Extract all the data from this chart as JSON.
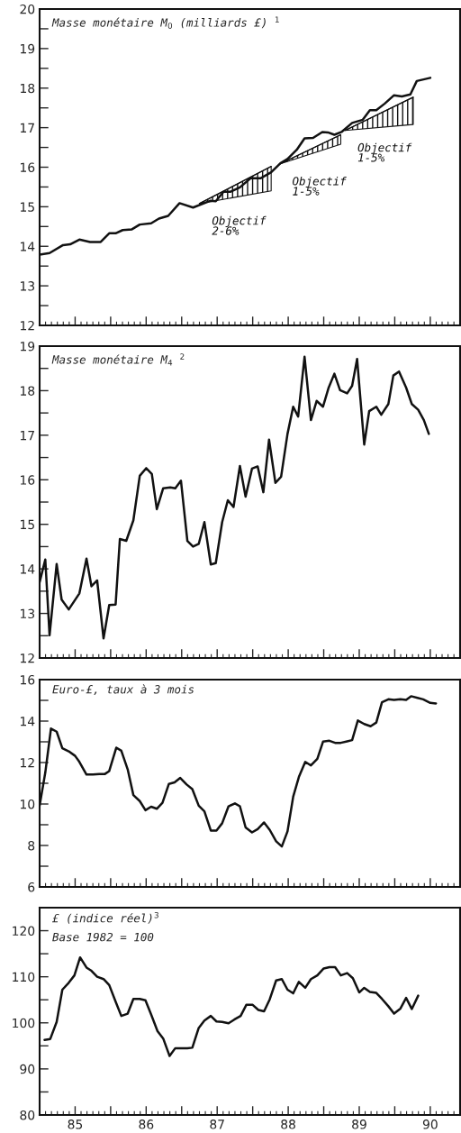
{
  "chart_data": [
    {
      "type": "line",
      "title": "Masse monétaire M$_{0}$ (milliards £) $^{1}$",
      "tick_labels": "y",
      "grid": false,
      "xlim": [
        84.5,
        90.42
      ],
      "ylim": [
        12,
        20
      ],
      "xticks": [
        85,
        {
          "value": 85.5,
          "label": null
        },
        86,
        {
          "value": 86.5,
          "label": null
        },
        87,
        {
          "value": 87.5,
          "label": null
        },
        88,
        {
          "value": 88.5,
          "label": null
        },
        89,
        {
          "value": 89.5,
          "label": null
        },
        90
      ],
      "yticks": [
        12,
        {
          "value": 12.5,
          "label": null
        },
        13,
        {
          "value": 13.5,
          "label": null
        },
        14,
        {
          "value": 14.5,
          "label": null
        },
        15,
        {
          "value": 15.5,
          "label": null
        },
        16,
        {
          "value": 16.5,
          "label": null
        },
        17,
        {
          "value": 17.5,
          "label": null
        },
        18,
        {
          "value": 18.5,
          "label": null
        },
        19,
        {
          "value": 19.5,
          "label": null
        },
        20
      ],
      "series": [
        {
          "color": "#111111",
          "x": [
            84.5,
            84.64,
            84.83,
            84.93,
            85.06,
            85.21,
            85.36,
            85.48,
            85.57,
            85.67,
            85.8,
            85.91,
            86.07,
            86.18,
            86.31,
            86.47,
            86.66,
            86.9,
            86.98,
            87.09,
            87.19,
            87.32,
            87.47,
            87.61,
            87.76,
            87.89,
            87.99,
            88.12,
            88.23,
            88.35,
            88.48,
            88.56,
            88.65,
            88.75,
            88.9,
            89.05,
            89.15,
            89.24,
            89.36,
            89.49,
            89.6,
            89.72,
            89.81,
            90.0
          ],
          "values": [
            13.79,
            13.83,
            14.03,
            14.05,
            14.17,
            14.11,
            14.11,
            14.33,
            14.33,
            14.41,
            14.43,
            14.55,
            14.58,
            14.7,
            14.77,
            15.09,
            14.98,
            15.15,
            15.14,
            15.38,
            15.38,
            15.49,
            15.72,
            15.72,
            15.87,
            16.1,
            16.21,
            16.44,
            16.73,
            16.74,
            16.89,
            16.88,
            16.82,
            16.89,
            17.12,
            17.2,
            17.44,
            17.44,
            17.61,
            17.82,
            17.79,
            17.84,
            18.18,
            18.26
          ]
        },
        {
          "type": "line",
          "name": "Objectif 2-6%",
          "color": "#111111",
          "x": [
            86.75,
            87.76
          ],
          "lower": [
            15.08,
            15.4
          ],
          "upper": [
            15.08,
            16.02
          ],
          "values": [
            15.08,
            16.02
          ]
        },
        {
          "type": "line",
          "name": "Objectif 1-5%",
          "color": "#111111",
          "x": [
            87.88,
            88.74
          ],
          "lower": [
            16.08,
            16.58
          ],
          "upper": [
            16.08,
            16.82
          ],
          "values": [
            16.08,
            16.82
          ]
        },
        {
          "type": "line",
          "name": "Objectif 1-5%",
          "color": "#111111",
          "x": [
            88.8,
            89.76
          ],
          "lower": [
            16.93,
            17.08
          ],
          "upper": [
            16.93,
            17.77
          ],
          "values": [
            16.93,
            17.77
          ]
        }
      ]
    },
    {
      "type": "line",
      "title": "Masse monétaire M$_{4}$ $^{2}$",
      "tick_labels": "y",
      "grid": false,
      "xlim": [
        84.5,
        90.42
      ],
      "ylim": [
        12,
        19
      ],
      "xticks": [
        85,
        {
          "value": 85.5,
          "label": null
        },
        86,
        {
          "value": 86.5,
          "label": null
        },
        87,
        {
          "value": 87.5,
          "label": null
        },
        88,
        {
          "value": 88.5,
          "label": null
        },
        89,
        {
          "value": 89.5,
          "label": null
        },
        90
      ],
      "yticks": [
        12,
        {
          "value": 12.5,
          "label": null
        },
        13,
        {
          "value": 13.5,
          "label": null
        },
        14,
        {
          "value": 14.5,
          "label": null
        },
        15,
        {
          "value": 15.5,
          "label": null
        },
        16,
        {
          "value": 16.5,
          "label": null
        },
        17,
        {
          "value": 17.5,
          "label": null
        },
        18,
        {
          "value": 18.5,
          "label": null
        },
        19
      ],
      "series": [
        {
          "color": "#111111",
          "x": [
            84.5,
            84.58,
            84.64,
            84.74,
            84.81,
            84.91,
            85.06,
            85.16,
            85.23,
            85.31,
            85.4,
            85.48,
            85.57,
            85.63,
            85.72,
            85.82,
            85.91,
            86.0,
            86.08,
            86.15,
            86.24,
            86.34,
            86.41,
            86.49,
            86.58,
            86.66,
            86.74,
            86.82,
            86.91,
            86.98,
            87.07,
            87.15,
            87.23,
            87.32,
            87.4,
            87.49,
            87.57,
            87.65,
            87.73,
            87.82,
            87.9,
            87.99,
            88.07,
            88.14,
            88.23,
            88.32,
            88.4,
            88.49,
            88.57,
            88.65,
            88.73,
            88.83,
            88.9,
            88.97,
            89.07,
            89.14,
            89.24,
            89.31,
            89.41,
            89.48,
            89.56,
            89.66,
            89.74,
            89.83,
            89.91,
            89.98
          ],
          "values": [
            13.7,
            14.21,
            12.51,
            14.11,
            13.31,
            13.09,
            13.45,
            14.23,
            13.61,
            13.74,
            12.44,
            13.19,
            13.2,
            14.67,
            14.63,
            15.09,
            16.09,
            16.26,
            16.13,
            15.34,
            15.81,
            15.83,
            15.81,
            15.98,
            14.63,
            14.5,
            14.56,
            15.05,
            14.1,
            14.13,
            15.05,
            15.54,
            15.39,
            16.31,
            15.62,
            16.25,
            16.3,
            15.72,
            16.9,
            15.93,
            16.07,
            17.03,
            17.64,
            17.42,
            18.76,
            17.34,
            17.77,
            17.64,
            18.07,
            18.38,
            18.01,
            17.94,
            18.11,
            18.71,
            16.79,
            17.54,
            17.64,
            17.46,
            17.7,
            18.34,
            18.43,
            18.07,
            17.7,
            17.57,
            17.34,
            17.03
          ]
        }
      ]
    },
    {
      "type": "line",
      "title": "Euro-£, taux à 3 mois",
      "tick_labels": "y",
      "grid": false,
      "xlim": [
        84.5,
        90.42
      ],
      "ylim": [
        6,
        16
      ],
      "xticks": [
        85,
        {
          "value": 85.5,
          "label": null
        },
        86,
        {
          "value": 86.5,
          "label": null
        },
        87,
        {
          "value": 87.5,
          "label": null
        },
        88,
        {
          "value": 88.5,
          "label": null
        },
        89,
        {
          "value": 89.5,
          "label": null
        },
        90
      ],
      "yticks": [
        6,
        {
          "value": 7,
          "label": null
        },
        8,
        {
          "value": 9,
          "label": null
        },
        10,
        {
          "value": 11,
          "label": null
        },
        12,
        {
          "value": 13,
          "label": null
        },
        14,
        {
          "value": 15,
          "label": null
        },
        16
      ],
      "series": [
        {
          "color": "#111111",
          "x": [
            84.5,
            84.58,
            84.66,
            84.74,
            84.82,
            84.91,
            85.0,
            85.06,
            85.16,
            85.25,
            85.34,
            85.42,
            85.48,
            85.58,
            85.65,
            85.74,
            85.82,
            85.91,
            85.99,
            86.07,
            86.15,
            86.23,
            86.32,
            86.4,
            86.48,
            86.57,
            86.65,
            86.74,
            86.82,
            86.91,
            86.99,
            87.07,
            87.16,
            87.25,
            87.32,
            87.4,
            87.49,
            87.57,
            87.66,
            87.74,
            87.83,
            87.91,
            87.99,
            88.07,
            88.15,
            88.24,
            88.32,
            88.41,
            88.49,
            88.58,
            88.66,
            88.74,
            88.83,
            88.9,
            88.98,
            89.07,
            89.16,
            89.24,
            89.32,
            89.41,
            89.49,
            89.58,
            89.66,
            89.73,
            89.82,
            89.9,
            90.0,
            90.08
          ],
          "values": [
            9.92,
            11.52,
            13.64,
            13.49,
            12.69,
            12.54,
            12.32,
            12.03,
            11.42,
            11.42,
            11.45,
            11.45,
            11.59,
            12.72,
            12.57,
            11.67,
            10.43,
            10.14,
            9.7,
            9.87,
            9.77,
            10.06,
            10.97,
            11.04,
            11.26,
            10.94,
            10.72,
            9.92,
            9.65,
            8.72,
            8.72,
            9.07,
            9.89,
            10.03,
            9.89,
            8.87,
            8.63,
            8.79,
            9.11,
            8.75,
            8.2,
            7.95,
            8.68,
            10.35,
            11.3,
            12.03,
            11.86,
            12.18,
            13.01,
            13.05,
            12.95,
            12.95,
            13.02,
            13.08,
            14.03,
            13.86,
            13.75,
            13.93,
            14.91,
            15.05,
            15.02,
            15.05,
            15.02,
            15.2,
            15.12,
            15.05,
            14.88,
            14.85
          ]
        }
      ]
    },
    {
      "type": "line",
      "title": "£ (indice réel)$^{3}$",
      "subtitle": "Base 1982 = 100",
      "grid": false,
      "xlim": [
        84.5,
        90.42
      ],
      "ylim": [
        80,
        125
      ],
      "xticks": [
        85,
        {
          "value": 85.5,
          "label": null
        },
        86,
        {
          "value": 86.5,
          "label": null
        },
        87,
        {
          "value": 87.5,
          "label": null
        },
        88,
        {
          "value": 88.5,
          "label": null
        },
        89,
        {
          "value": 89.5,
          "label": null
        },
        90
      ],
      "yticks": [
        80,
        {
          "value": 85,
          "label": null
        },
        90,
        {
          "value": 95,
          "label": null
        },
        100,
        {
          "value": 105,
          "label": null
        },
        110,
        {
          "value": 115,
          "label": null
        },
        120
      ],
      "series": [
        {
          "color": "#111111",
          "x": [
            84.57,
            84.65,
            84.74,
            84.82,
            84.91,
            84.99,
            85.07,
            85.16,
            85.23,
            85.31,
            85.4,
            85.48,
            85.57,
            85.65,
            85.74,
            85.82,
            85.91,
            85.99,
            86.07,
            86.16,
            86.24,
            86.33,
            86.41,
            86.5,
            86.58,
            86.65,
            86.74,
            86.82,
            86.91,
            86.99,
            87.07,
            87.16,
            87.24,
            87.33,
            87.41,
            87.5,
            87.58,
            87.66,
            87.74,
            87.83,
            87.91,
            87.99,
            88.07,
            88.15,
            88.24,
            88.32,
            88.41,
            88.5,
            88.58,
            88.66,
            88.74,
            88.83,
            88.91,
            89.0,
            89.07,
            89.15,
            89.24,
            89.32,
            89.41,
            89.49,
            89.58,
            89.66,
            89.74,
            89.83
          ],
          "values": [
            96.3,
            96.5,
            100.2,
            107.2,
            108.7,
            110.3,
            114.2,
            112.0,
            111.3,
            110.0,
            109.5,
            108.2,
            104.6,
            101.5,
            102.0,
            105.2,
            105.2,
            104.9,
            101.8,
            98.2,
            96.6,
            92.8,
            94.5,
            94.5,
            94.5,
            94.6,
            98.9,
            100.5,
            101.5,
            100.3,
            100.2,
            99.9,
            100.7,
            101.5,
            103.9,
            103.9,
            102.8,
            102.5,
            105.1,
            109.2,
            109.5,
            107.2,
            106.4,
            108.9,
            107.6,
            109.5,
            110.3,
            111.8,
            112.1,
            112.1,
            110.3,
            110.8,
            109.7,
            106.6,
            107.6,
            106.7,
            106.5,
            105.2,
            103.6,
            102.0,
            103.1,
            105.4,
            103.0,
            105.9
          ]
        }
      ]
    }
  ]
}
